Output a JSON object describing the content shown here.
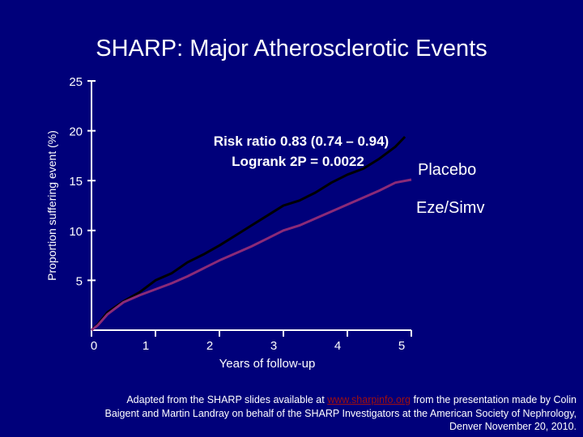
{
  "slide": {
    "title": "SHARP: Major Atherosclerotic Events"
  },
  "colors": {
    "background": "#00007a",
    "placebo_line": "#000000",
    "ezesimv_line": "#8b2a78",
    "axis": "#ffffff",
    "link": "#a01010"
  },
  "chart_data": {
    "type": "line",
    "title": "",
    "xlabel": "Years of follow-up",
    "ylabel": "Proportion suffering event (%)",
    "xlim": [
      0,
      5
    ],
    "ylim": [
      0,
      25
    ],
    "x_ticks": [
      "0",
      "1",
      "2",
      "3",
      "4",
      "5"
    ],
    "y_ticks": [
      "5",
      "10",
      "15",
      "20",
      "25"
    ],
    "annotations": {
      "risk_ratio": "Risk ratio 0.83 (0.74 – 0.94)",
      "logrank": "Logrank 2P = 0.0022"
    },
    "series": [
      {
        "name": "Placebo",
        "x": [
          0,
          0.1,
          0.25,
          0.5,
          0.75,
          1.0,
          1.25,
          1.5,
          1.75,
          2.0,
          2.25,
          2.5,
          2.75,
          3.0,
          3.25,
          3.5,
          3.75,
          4.0,
          4.25,
          4.5,
          4.75,
          4.9
        ],
        "values": [
          0,
          0.6,
          1.8,
          2.9,
          3.8,
          5.0,
          5.7,
          6.8,
          7.6,
          8.5,
          9.5,
          10.5,
          11.5,
          12.5,
          13.0,
          13.8,
          14.8,
          15.6,
          16.2,
          17.2,
          18.4,
          19.4
        ]
      },
      {
        "name": "Eze/Simv",
        "x": [
          0,
          0.1,
          0.25,
          0.5,
          0.75,
          1.0,
          1.25,
          1.5,
          1.75,
          2.0,
          2.25,
          2.5,
          2.75,
          3.0,
          3.25,
          3.5,
          3.75,
          4.0,
          4.25,
          4.5,
          4.75,
          5.0
        ],
        "values": [
          0,
          0.5,
          1.6,
          2.8,
          3.5,
          4.1,
          4.7,
          5.4,
          6.2,
          7.0,
          7.7,
          8.4,
          9.2,
          10.0,
          10.5,
          11.2,
          11.9,
          12.6,
          13.3,
          14.0,
          14.8,
          15.1
        ]
      }
    ]
  }
}
